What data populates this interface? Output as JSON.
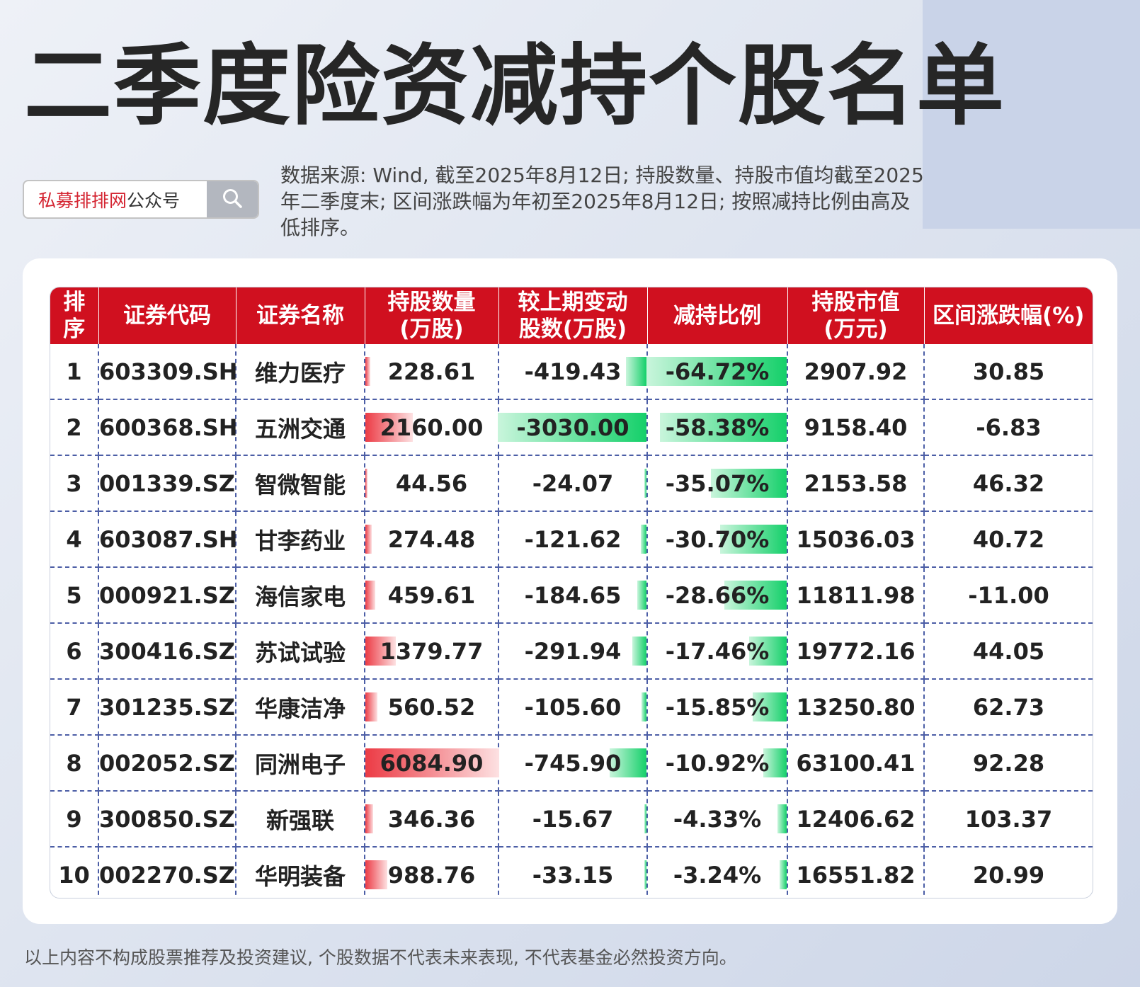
{
  "title": "二季度险资减持个股名单",
  "search": {
    "brand": "私募排排网",
    "suffix": "公众号"
  },
  "note": "数据来源: Wind, 截至2025年8月12日; 持股数量、持股市值均截至2025年二季度末; 区间涨跌幅为年初至2025年8月12日; 按照减持比例由高及低排序。",
  "colors": {
    "header": "#d0101f",
    "increase_bar": "#ec3b45",
    "decrease_bar": "#15d06a",
    "grid": "#4c5ea6"
  },
  "table": {
    "headers": [
      [
        "排",
        "序"
      ],
      [
        "证券代码"
      ],
      [
        "证券名称"
      ],
      [
        "持股数量",
        "(万股)"
      ],
      [
        "较上期变动",
        "股数(万股)"
      ],
      [
        "减持比例"
      ],
      [
        "持股市值",
        "(万元)"
      ],
      [
        "区间涨跌幅(%)"
      ]
    ],
    "rows": [
      {
        "rank": "1",
        "code": "603309.SH",
        "name": "维力医疗",
        "shares": "228.61",
        "change": "-419.43",
        "ratio": "-64.72%",
        "value": "2907.92",
        "return": "30.85",
        "shares_num": 228.61,
        "change_num": -419.43,
        "ratio_num": -64.72
      },
      {
        "rank": "2",
        "code": "600368.SH",
        "name": "五洲交通",
        "shares": "2160.00",
        "change": "-3030.00",
        "ratio": "-58.38%",
        "value": "9158.40",
        "return": "-6.83",
        "shares_num": 2160.0,
        "change_num": -3030.0,
        "ratio_num": -58.38
      },
      {
        "rank": "3",
        "code": "001339.SZ",
        "name": "智微智能",
        "shares": "44.56",
        "change": "-24.07",
        "ratio": "-35.07%",
        "value": "2153.58",
        "return": "46.32",
        "shares_num": 44.56,
        "change_num": -24.07,
        "ratio_num": -35.07
      },
      {
        "rank": "4",
        "code": "603087.SH",
        "name": "甘李药业",
        "shares": "274.48",
        "change": "-121.62",
        "ratio": "-30.70%",
        "value": "15036.03",
        "return": "40.72",
        "shares_num": 274.48,
        "change_num": -121.62,
        "ratio_num": -30.7
      },
      {
        "rank": "5",
        "code": "000921.SZ",
        "name": "海信家电",
        "shares": "459.61",
        "change": "-184.65",
        "ratio": "-28.66%",
        "value": "11811.98",
        "return": "-11.00",
        "shares_num": 459.61,
        "change_num": -184.65,
        "ratio_num": -28.66
      },
      {
        "rank": "6",
        "code": "300416.SZ",
        "name": "苏试试验",
        "shares": "1379.77",
        "change": "-291.94",
        "ratio": "-17.46%",
        "value": "19772.16",
        "return": "44.05",
        "shares_num": 1379.77,
        "change_num": -291.94,
        "ratio_num": -17.46
      },
      {
        "rank": "7",
        "code": "301235.SZ",
        "name": "华康洁净",
        "shares": "560.52",
        "change": "-105.60",
        "ratio": "-15.85%",
        "value": "13250.80",
        "return": "62.73",
        "shares_num": 560.52,
        "change_num": -105.6,
        "ratio_num": -15.85
      },
      {
        "rank": "8",
        "code": "002052.SZ",
        "name": "同洲电子",
        "shares": "6084.90",
        "change": "-745.90",
        "ratio": "-10.92%",
        "value": "63100.41",
        "return": "92.28",
        "shares_num": 6084.9,
        "change_num": -745.9,
        "ratio_num": -10.92
      },
      {
        "rank": "9",
        "code": "300850.SZ",
        "name": "新强联",
        "shares": "346.36",
        "change": "-15.67",
        "ratio": "-4.33%",
        "value": "12406.62",
        "return": "103.37",
        "shares_num": 346.36,
        "change_num": -15.67,
        "ratio_num": -4.33
      },
      {
        "rank": "10",
        "code": "002270.SZ",
        "name": "华明装备",
        "shares": "988.76",
        "change": "-33.15",
        "ratio": "-3.24%",
        "value": "16551.82",
        "return": "20.99",
        "shares_num": 988.76,
        "change_num": -33.15,
        "ratio_num": -3.24
      }
    ]
  },
  "disclaimer": "以上内容不构成股票推荐及投资建议, 个股数据不代表未来表现, 不代表基金必然投资方向。"
}
